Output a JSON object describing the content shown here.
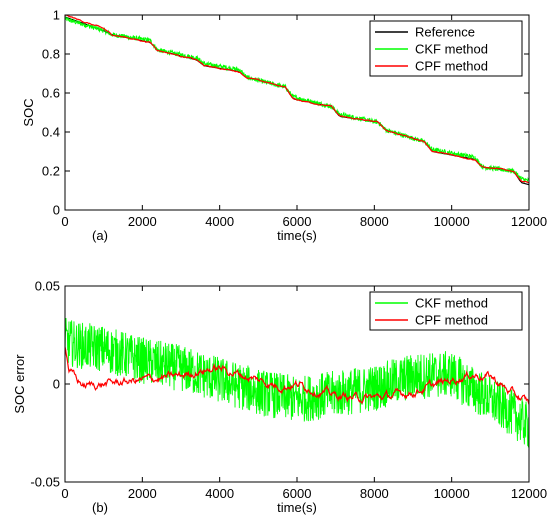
{
  "chart_data": [
    {
      "type": "line",
      "panel_label": "(a)",
      "xlabel": "time(s)",
      "ylabel": "SOC",
      "xlim": [
        0,
        12000
      ],
      "ylim": [
        0,
        1
      ],
      "xticks": [
        0,
        2000,
        4000,
        6000,
        8000,
        10000,
        12000
      ],
      "yticks": [
        0,
        0.2,
        0.4,
        0.6,
        0.8,
        1
      ],
      "ytick_labels": [
        "0",
        "0.2",
        "0.4",
        "0.6",
        "0.8",
        "1"
      ],
      "grid": false,
      "legend_position": "top-right",
      "series": [
        {
          "name": "Reference",
          "color": "#000000",
          "x": [
            0,
            1000,
            1200,
            2200,
            2400,
            3400,
            3600,
            4500,
            4700,
            5700,
            5900,
            6900,
            7100,
            8100,
            8300,
            9300,
            9500,
            10600,
            10800,
            11600,
            11800,
            12000
          ],
          "y": [
            0.99,
            0.92,
            0.9,
            0.86,
            0.82,
            0.77,
            0.74,
            0.71,
            0.68,
            0.63,
            0.57,
            0.53,
            0.48,
            0.45,
            0.41,
            0.35,
            0.3,
            0.26,
            0.22,
            0.2,
            0.14,
            0.13
          ]
        },
        {
          "name": "CKF method",
          "color": "#00ff00",
          "noise": 0.012,
          "x": [
            0,
            1000,
            1200,
            2200,
            2400,
            3400,
            3600,
            4500,
            4700,
            5700,
            5900,
            6900,
            7100,
            8100,
            8300,
            9300,
            9500,
            10600,
            10800,
            11600,
            11800,
            12000
          ],
          "y": [
            0.98,
            0.92,
            0.9,
            0.87,
            0.82,
            0.78,
            0.75,
            0.72,
            0.68,
            0.63,
            0.58,
            0.53,
            0.49,
            0.45,
            0.41,
            0.35,
            0.31,
            0.27,
            0.22,
            0.2,
            0.16,
            0.15
          ]
        },
        {
          "name": "CPF method",
          "color": "#ff0000",
          "noise": 0.004,
          "x": [
            0,
            1000,
            1200,
            2200,
            2400,
            3400,
            3600,
            4500,
            4700,
            5700,
            5900,
            6900,
            7100,
            8100,
            8300,
            9300,
            9500,
            10600,
            10800,
            11600,
            11800,
            12000
          ],
          "y": [
            1.0,
            0.93,
            0.9,
            0.86,
            0.82,
            0.77,
            0.74,
            0.71,
            0.68,
            0.63,
            0.57,
            0.53,
            0.48,
            0.45,
            0.41,
            0.35,
            0.3,
            0.26,
            0.22,
            0.2,
            0.15,
            0.14
          ]
        }
      ]
    },
    {
      "type": "line",
      "panel_label": "(b)",
      "xlabel": "time(s)",
      "ylabel": "SOC error",
      "xlim": [
        0,
        12000
      ],
      "ylim": [
        -0.05,
        0.05
      ],
      "xticks": [
        0,
        2000,
        4000,
        6000,
        8000,
        10000,
        12000
      ],
      "yticks": [
        -0.05,
        0,
        0.05
      ],
      "ytick_labels": [
        "-0.05",
        "0",
        "0.05"
      ],
      "grid": false,
      "legend_position": "top-right",
      "series": [
        {
          "name": "CKF method",
          "color": "#00ff00",
          "noise": 0.012,
          "x": [
            0,
            300,
            1000,
            2000,
            3000,
            4000,
            5000,
            6000,
            7000,
            8000,
            9000,
            10000,
            10500,
            11000,
            11500,
            12000
          ],
          "y": [
            0.022,
            0.02,
            0.018,
            0.012,
            0.008,
            0.002,
            -0.004,
            -0.008,
            -0.005,
            -0.002,
            0.004,
            0.005,
            -0.002,
            -0.008,
            -0.014,
            -0.022
          ]
        },
        {
          "name": "CPF method",
          "color": "#ff0000",
          "noise": 0.0025,
          "x": [
            0,
            100,
            300,
            500,
            1000,
            1500,
            2000,
            2500,
            3000,
            3500,
            4000,
            4500,
            5000,
            5500,
            6000,
            6500,
            7000,
            7500,
            8000,
            8500,
            9000,
            9500,
            10000,
            10500,
            11000,
            11500,
            12000
          ],
          "y": [
            0.02,
            0.008,
            0.002,
            -0.001,
            0.0,
            0.001,
            0.002,
            0.003,
            0.004,
            0.007,
            0.008,
            0.005,
            0.002,
            -0.001,
            0.0,
            -0.003,
            -0.006,
            -0.007,
            -0.007,
            -0.006,
            -0.004,
            -0.001,
            0.002,
            0.005,
            0.004,
            -0.004,
            -0.01
          ]
        }
      ]
    }
  ]
}
